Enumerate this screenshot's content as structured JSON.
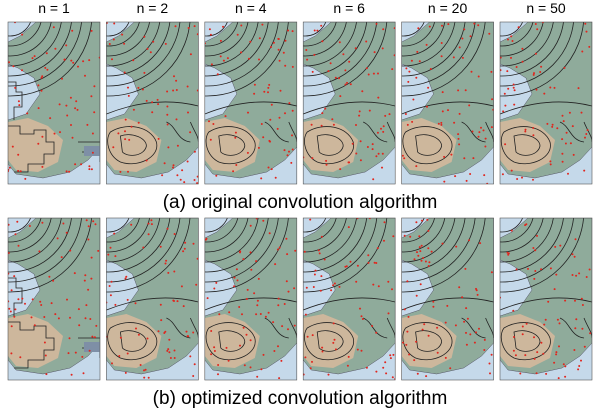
{
  "columns": [
    "n = 1",
    "n = 2",
    "n = 4",
    "n = 6",
    "n = 20",
    "n = 50"
  ],
  "rows": [
    {
      "caption": "(a) original convolution algorithm"
    },
    {
      "caption": "(b) optimized convolution algorithm"
    }
  ]
}
